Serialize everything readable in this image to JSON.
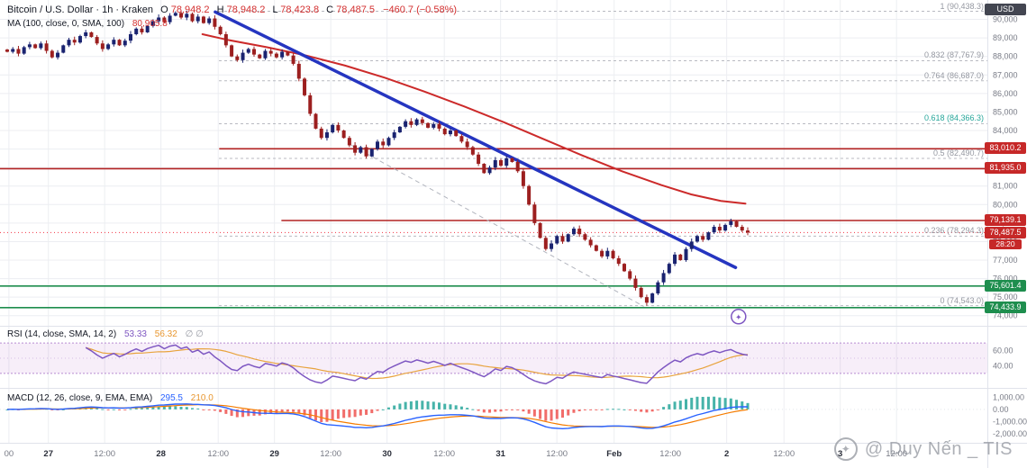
{
  "symbol_bar": {
    "title": "Bitcoin / U.S. Dollar · 1h · Kraken",
    "o_label": "O",
    "h_label": "H",
    "l_label": "L",
    "c_label": "C",
    "open": "78,948.2",
    "high": "78,948.2",
    "low": "78,423.8",
    "close": "78,487.5",
    "change": "−460.7 (−0.58%)"
  },
  "ma_legend": {
    "label": "MA (100, close, 0, SMA, 100)",
    "value": "80,905.8"
  },
  "rsi_legend": {
    "label": "RSI (14, close, SMA, 14, 2)",
    "value": "53.33",
    "ma_value": "56.32",
    "empty_values": "∅ ∅"
  },
  "macd_legend": {
    "label": "MACD (12, 26, close, 9, EMA, EMA)",
    "macd_value": "295.5",
    "signal_value": "210.0"
  },
  "watermark": {
    "text": "@ Duy Nến _ TIS",
    "icon": "compass-star"
  },
  "axis": {
    "currency": "USD",
    "price_min": 74000,
    "price_max": 90000,
    "price_step": 1000,
    "time_ticks": [
      {
        "label": "00",
        "x": 0.009,
        "minor": true
      },
      {
        "label": "27",
        "x": 0.049,
        "minor": false
      },
      {
        "label": "12:00",
        "x": 0.106,
        "minor": true
      },
      {
        "label": "28",
        "x": 0.163,
        "minor": false
      },
      {
        "label": "12:00",
        "x": 0.221,
        "minor": true
      },
      {
        "label": "29",
        "x": 0.278,
        "minor": false
      },
      {
        "label": "12:00",
        "x": 0.335,
        "minor": true
      },
      {
        "label": "30",
        "x": 0.392,
        "minor": false
      },
      {
        "label": "12:00",
        "x": 0.45,
        "minor": true
      },
      {
        "label": "31",
        "x": 0.507,
        "minor": false
      },
      {
        "label": "12:00",
        "x": 0.564,
        "minor": true
      },
      {
        "label": "Feb",
        "x": 0.622,
        "minor": false
      },
      {
        "label": "12:00",
        "x": 0.679,
        "minor": true
      },
      {
        "label": "2",
        "x": 0.736,
        "minor": false
      },
      {
        "label": "12:00",
        "x": 0.794,
        "minor": true
      },
      {
        "label": "3",
        "x": 0.851,
        "minor": false
      },
      {
        "label": "12:00",
        "x": 0.908,
        "minor": true
      }
    ],
    "rsi_ticks": [
      {
        "label": "60.00",
        "value": 60
      },
      {
        "label": "40.00",
        "value": 40
      }
    ],
    "macd_ticks": [
      {
        "label": "1,000.00",
        "value": 1000
      },
      {
        "label": "0.00",
        "value": 0
      },
      {
        "label": "-1,000.00",
        "value": -1000
      },
      {
        "label": "-2,000.00",
        "value": -2000
      }
    ]
  },
  "chart_data": {
    "type": "candlestick",
    "title": "Bitcoin / U.S. Dollar",
    "interval": "1h",
    "exchange": "Kraken",
    "ylim": [
      73550,
      90950
    ],
    "last_bar": {
      "open": 78948.2,
      "high": 78948.2,
      "low": 78423.8,
      "close": 78487.5,
      "change": -460.7,
      "change_pct": -0.58
    },
    "closes": [
      88250,
      88400,
      88150,
      88500,
      88650,
      88450,
      88700,
      88300,
      87950,
      88200,
      88600,
      88900,
      88750,
      89100,
      89300,
      89050,
      88700,
      88400,
      88650,
      88900,
      88600,
      88850,
      89200,
      89500,
      89300,
      89650,
      89900,
      90100,
      89850,
      90200,
      90350,
      90100,
      90300,
      89900,
      90150,
      89800,
      90050,
      89600,
      89200,
      88600,
      88000,
      87800,
      88200,
      88400,
      88100,
      87900,
      88300,
      88150,
      87950,
      88250,
      88050,
      87600,
      86800,
      85900,
      84900,
      84100,
      83600,
      83900,
      84300,
      84000,
      83600,
      83200,
      82800,
      83100,
      82600,
      83000,
      83400,
      83200,
      83600,
      83900,
      84200,
      84500,
      84300,
      84600,
      84400,
      84150,
      84350,
      84100,
      83800,
      84000,
      83700,
      83400,
      83100,
      82700,
      82200,
      81700,
      82000,
      82400,
      82100,
      82500,
      82300,
      81800,
      81000,
      80000,
      79000,
      78200,
      77600,
      77900,
      78300,
      78000,
      78400,
      78700,
      78400,
      78100,
      77800,
      77500,
      77200,
      77500,
      77100,
      76800,
      76400,
      76000,
      75500,
      75000,
      74700,
      75200,
      75800,
      76300,
      76800,
      77300,
      77000,
      77600,
      78000,
      78300,
      78100,
      78500,
      78800,
      78600,
      78900,
      79100,
      78800,
      78600,
      78487.5
    ],
    "swing_high": {
      "index": 30,
      "price": 90438.3
    },
    "swing_low": {
      "index": 114,
      "price": 74543.0
    },
    "fib_levels": [
      {
        "label": "1 (90,438.3)",
        "price": 90438.3,
        "accent": false
      },
      {
        "label": "0.832 (87,767.9)",
        "price": 87767.9,
        "accent": false
      },
      {
        "label": "0.764 (86,687.0)",
        "price": 86687.0,
        "accent": false
      },
      {
        "label": "0.618 (84,366.3)",
        "price": 84366.3,
        "accent": true
      },
      {
        "label": "0.5 (82,490.7)",
        "price": 82490.7,
        "accent": false
      },
      {
        "label": "0.236 (78,294.3)",
        "price": 78294.3,
        "accent": false
      },
      {
        "label": "0 (74,543.0)",
        "price": 74543.0,
        "accent": false
      }
    ],
    "resistance_levels": [
      {
        "label": "83,010.2",
        "price": 83010.2,
        "from": 0.222
      },
      {
        "label": "81,935.0",
        "price": 81935.0,
        "from": 0.0
      },
      {
        "label": "79,139.1",
        "price": 79139.1,
        "from": 0.285
      }
    ],
    "support_levels": [
      {
        "label": "75,601.4",
        "price": 75601.4,
        "from": 0.0
      },
      {
        "label": "74,433.9",
        "price": 74433.9,
        "from": 0.0
      }
    ],
    "last_price": {
      "label": "78,487.5",
      "price": 78487.5,
      "countdown": "28:20"
    },
    "trendline": {
      "x1": 0.218,
      "p1": 90400,
      "x2": 0.745,
      "p2": 76600
    },
    "dashed_channel": {
      "x1": 0.356,
      "p1": 83200,
      "x2": 0.652,
      "p2": 74500
    },
    "ma100_path": [
      [
        0.205,
        89200
      ],
      [
        0.23,
        88900
      ],
      [
        0.27,
        88500
      ],
      [
        0.31,
        88050
      ],
      [
        0.35,
        87500
      ],
      [
        0.39,
        86850
      ],
      [
        0.43,
        86100
      ],
      [
        0.47,
        85300
      ],
      [
        0.51,
        84450
      ],
      [
        0.55,
        83550
      ],
      [
        0.59,
        82650
      ],
      [
        0.63,
        81800
      ],
      [
        0.67,
        81050
      ],
      [
        0.7,
        80550
      ],
      [
        0.73,
        80200
      ],
      [
        0.755,
        80050
      ]
    ],
    "rsi": {
      "period": 14,
      "smoothing": 14,
      "band": [
        30,
        70
      ],
      "current": 53.33
    },
    "macd": {
      "fast": 12,
      "slow": 26,
      "signal": 9,
      "current_macd": 295.5,
      "current_signal": 210.0
    },
    "event_marker": {
      "x": 0.748,
      "price": 73950
    }
  },
  "colors": {
    "up": "#1a2370",
    "down": "#9c1f1f",
    "trend": "#2535c0",
    "ma": "#cc2a2a",
    "resistance": "#b22222",
    "support": "#1e8e4e",
    "rsi": "#7e57c2",
    "rsi_ma": "#e8a33d",
    "band": "#9c27b0",
    "macd": "#2962ff",
    "signal": "#f57c00",
    "hist_up": "#26a69a",
    "hist_down": "#ef5350",
    "grid": "#eceef2",
    "axis_text": "#787b86",
    "border": "#e0e3eb"
  }
}
